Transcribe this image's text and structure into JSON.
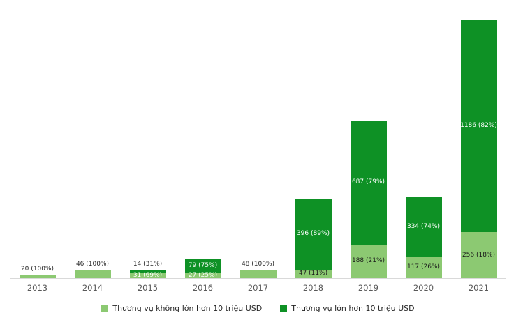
{
  "chart_data": {
    "type": "bar",
    "stacked": true,
    "title": "",
    "xlabel": "",
    "ylabel": "",
    "ylim": [
      0,
      1442
    ],
    "grid": false,
    "legend_position": "bottom",
    "categories": [
      "2013",
      "2014",
      "2015",
      "2016",
      "2017",
      "2018",
      "2019",
      "2020",
      "2021"
    ],
    "series": [
      {
        "name": "Thương vụ không lớn hơn 10 triệu USD",
        "color": "#8cc972",
        "values": [
          20,
          46,
          31,
          27,
          48,
          47,
          188,
          117,
          256
        ]
      },
      {
        "name": "Thương vụ lớn hơn 10 triệu USD",
        "color": "#0e9125",
        "values": [
          0,
          0,
          14,
          79,
          0,
          396,
          687,
          334,
          1186
        ]
      }
    ],
    "bars": [
      {
        "year": "2013",
        "small": {
          "value": 20,
          "label": "20 (100%)",
          "label_pos": "above",
          "label_color": "#262626"
        },
        "large": null
      },
      {
        "year": "2014",
        "small": {
          "value": 46,
          "label": "46 (100%)",
          "label_pos": "above",
          "label_color": "#262626"
        },
        "large": null
      },
      {
        "year": "2015",
        "small": {
          "value": 31,
          "label": "31 (69%)",
          "label_pos": "inside",
          "label_color": "#ffffff"
        },
        "large": {
          "value": 14,
          "label": "14 (31%)",
          "label_pos": "above",
          "label_color": "#262626"
        }
      },
      {
        "year": "2016",
        "small": {
          "value": 27,
          "label": "27 (25%)",
          "label_pos": "inside",
          "label_color": "#ffffff"
        },
        "large": {
          "value": 79,
          "label": "79 (75%)",
          "label_pos": "inside",
          "label_color": "#ffffff"
        }
      },
      {
        "year": "2017",
        "small": {
          "value": 48,
          "label": "48 (100%)",
          "label_pos": "above",
          "label_color": "#262626"
        },
        "large": null
      },
      {
        "year": "2018",
        "small": {
          "value": 47,
          "label": "47 (11%)",
          "label_pos": "inside",
          "label_color": "#1a1a1a"
        },
        "large": {
          "value": 396,
          "label": "396 (89%)",
          "label_pos": "inside",
          "label_color": "#ffffff"
        }
      },
      {
        "year": "2019",
        "small": {
          "value": 188,
          "label": "188 (21%)",
          "label_pos": "inside",
          "label_color": "#1a1a1a"
        },
        "large": {
          "value": 687,
          "label": "687 (79%)",
          "label_pos": "inside",
          "label_color": "#ffffff"
        }
      },
      {
        "year": "2020",
        "small": {
          "value": 117,
          "label": "117 (26%)",
          "label_pos": "inside",
          "label_color": "#1a1a1a"
        },
        "large": {
          "value": 334,
          "label": "334 (74%)",
          "label_pos": "inside",
          "label_color": "#ffffff"
        }
      },
      {
        "year": "2021",
        "small": {
          "value": 256,
          "label": "256 (18%)",
          "label_pos": "inside",
          "label_color": "#1a1a1a"
        },
        "large": {
          "value": 1186,
          "label": "1186 (82%)",
          "label_pos": "inside",
          "label_color": "#ffffff"
        }
      }
    ]
  },
  "colors": {
    "background": "#ffffff",
    "axis_line": "#d9d9d9",
    "axis_text": "#595959",
    "series_small": "#8cc972",
    "series_large": "#0e9125"
  }
}
